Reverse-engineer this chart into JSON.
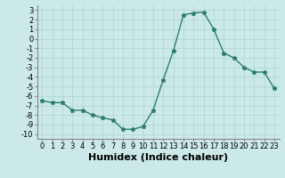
{
  "x": [
    0,
    1,
    2,
    3,
    4,
    5,
    6,
    7,
    8,
    9,
    10,
    11,
    12,
    13,
    14,
    15,
    16,
    17,
    18,
    19,
    20,
    21,
    22,
    23
  ],
  "y": [
    -6.5,
    -6.7,
    -6.7,
    -7.5,
    -7.5,
    -8.0,
    -8.3,
    -8.5,
    -9.5,
    -9.5,
    -9.2,
    -7.5,
    -4.3,
    -1.3,
    2.5,
    2.7,
    2.8,
    1.0,
    -1.5,
    -2.0,
    -3.0,
    -3.5,
    -3.5,
    -5.2
  ],
  "xlabel": "Humidex (Indice chaleur)",
  "ylim": [
    -10.5,
    3.5
  ],
  "xlim": [
    -0.5,
    23.5
  ],
  "yticks": [
    3,
    2,
    1,
    0,
    -1,
    -2,
    -3,
    -4,
    -5,
    -6,
    -7,
    -8,
    -9,
    -10
  ],
  "xticks": [
    0,
    1,
    2,
    3,
    4,
    5,
    6,
    7,
    8,
    9,
    10,
    11,
    12,
    13,
    14,
    15,
    16,
    17,
    18,
    19,
    20,
    21,
    22,
    23
  ],
  "xtick_labels": [
    "0",
    "1",
    "2",
    "3",
    "4",
    "5",
    "6",
    "7",
    "8",
    "9",
    "10",
    "11",
    "12",
    "13",
    "14",
    "15",
    "16",
    "17",
    "18",
    "19",
    "20",
    "21",
    "22",
    "23"
  ],
  "line_color": "#2d7d6e",
  "marker": "*",
  "marker_size": 3.5,
  "bg_color": "#cce9e9",
  "grid_color": "#aad4d4",
  "tick_fontsize": 6,
  "xlabel_fontsize": 8
}
